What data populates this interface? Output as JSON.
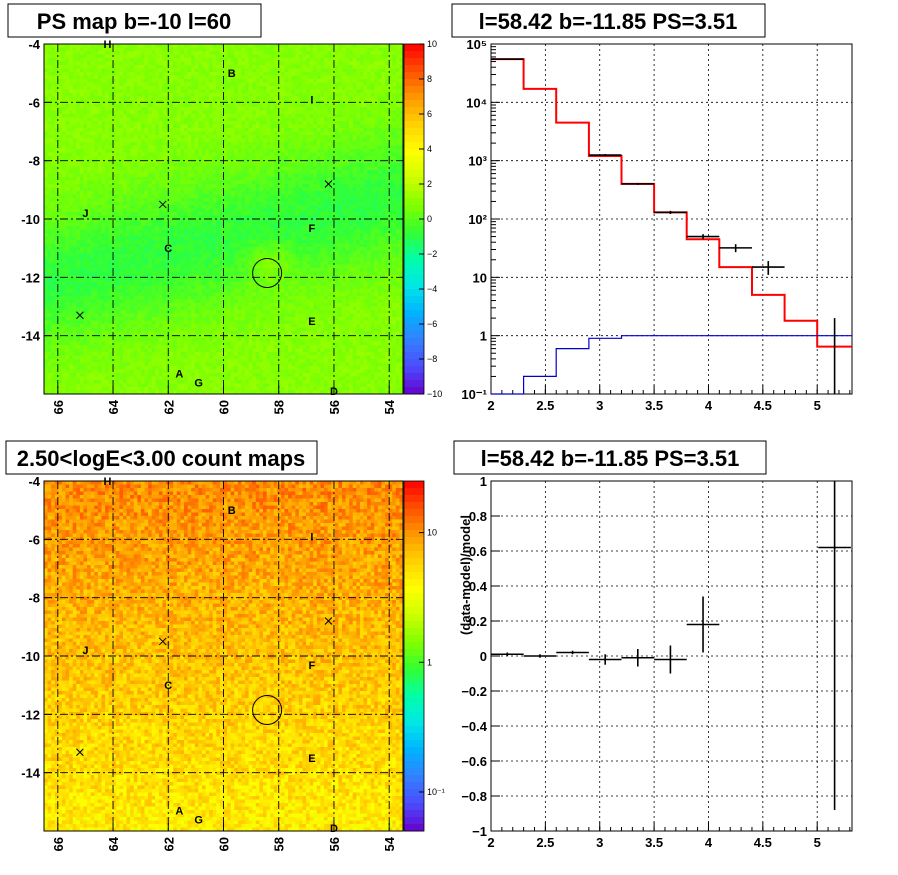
{
  "chart_data": [
    {
      "type": "heatmap",
      "title": "PS map b=-10 l=60",
      "xlim": [
        66.5,
        53.5
      ],
      "ylim": [
        -16,
        -4
      ],
      "x_ticks": [
        "66",
        "64",
        "62",
        "60",
        "58",
        "56",
        "54"
      ],
      "y_ticks": [
        "-4",
        "-6",
        "-8",
        "-10",
        "-12",
        "-14"
      ],
      "colorbar_ticks": [
        "10",
        "8",
        "6",
        "4",
        "2",
        "0",
        "−2",
        "−4",
        "−6",
        "−8",
        "−10"
      ],
      "colorbar_range": [
        -10,
        10
      ],
      "background_level": 0.3,
      "circle": {
        "x": 58.42,
        "y": -11.85
      },
      "crosses": [
        {
          "x": 62.2,
          "y": -9.5
        },
        {
          "x": 65.2,
          "y": -13.3
        },
        {
          "x": 56.2,
          "y": -8.8
        }
      ],
      "sources": [
        {
          "label": "H",
          "x": 64.2,
          "y": -4.0
        },
        {
          "label": "B",
          "x": 59.7,
          "y": -5.0
        },
        {
          "label": "I",
          "x": 56.8,
          "y": -5.9
        },
        {
          "label": "J",
          "x": 65.0,
          "y": -9.8
        },
        {
          "label": "F",
          "x": 56.8,
          "y": -10.3
        },
        {
          "label": "C",
          "x": 62.0,
          "y": -11.0
        },
        {
          "label": "E",
          "x": 56.8,
          "y": -13.5
        },
        {
          "label": "A",
          "x": 61.6,
          "y": -15.3
        },
        {
          "label": "G",
          "x": 60.9,
          "y": -15.6
        },
        {
          "label": "D",
          "x": 56.0,
          "y": -15.9
        }
      ]
    },
    {
      "type": "line",
      "title": "l=58.42 b=-11.85 PS=3.51",
      "xlim": [
        2,
        5.32
      ],
      "ylim": [
        0.1,
        100000
      ],
      "y_scale": "log",
      "x_ticks": [
        "2",
        "2.5",
        "3",
        "3.5",
        "4",
        "4.5",
        "5"
      ],
      "y_ticks": [
        "10⁻¹",
        "1",
        "10",
        "10²",
        "10³",
        "10⁴",
        "10⁵"
      ],
      "series": [
        {
          "color": "#ff0000",
          "style": "step",
          "edges": [
            2.0,
            2.3,
            2.6,
            2.9,
            3.2,
            3.5,
            3.8,
            4.1,
            4.4,
            4.7,
            5.0,
            5.32
          ],
          "values": [
            55000,
            17000,
            4500,
            1200,
            400,
            130,
            45,
            15,
            5,
            1.8,
            0.65
          ]
        },
        {
          "color": "#0000cc",
          "style": "step",
          "edges": [
            2.0,
            2.3,
            2.6,
            2.9,
            3.2,
            3.5,
            3.8,
            4.1,
            4.4,
            4.7,
            5.0,
            5.32
          ],
          "values": [
            0.01,
            0.2,
            0.6,
            0.9,
            1.0,
            1.0,
            1.0,
            1.0,
            1.0,
            1.0,
            1.0
          ]
        },
        {
          "color": "#000000",
          "style": "points",
          "points": [
            {
              "x": 2.15,
              "y": 55000,
              "xerr": 0.15,
              "ylo": 54000,
              "yhi": 56000
            },
            {
              "x": 3.05,
              "y": 1250,
              "xerr": 0.15,
              "ylo": 1200,
              "yhi": 1300
            },
            {
              "x": 3.35,
              "y": 400,
              "xerr": 0.15,
              "ylo": 385,
              "yhi": 415
            },
            {
              "x": 3.65,
              "y": 130,
              "xerr": 0.15,
              "ylo": 122,
              "yhi": 138
            },
            {
              "x": 3.95,
              "y": 50,
              "xerr": 0.15,
              "ylo": 45,
              "yhi": 55
            },
            {
              "x": 4.25,
              "y": 32,
              "xerr": 0.15,
              "ylo": 27,
              "yhi": 37
            },
            {
              "x": 4.55,
              "y": 15,
              "xerr": 0.15,
              "ylo": 11,
              "yhi": 19
            },
            {
              "x": 5.16,
              "y": 0.1,
              "xerr": 0.0,
              "ylo": 0.1,
              "yhi": 2
            }
          ]
        }
      ]
    },
    {
      "type": "heatmap",
      "title": "2.50<logE<3.00 count maps",
      "xlim": [
        66.5,
        53.5
      ],
      "ylim": [
        -16,
        -4
      ],
      "x_ticks": [
        "66",
        "64",
        "62",
        "60",
        "58",
        "56",
        "54"
      ],
      "y_ticks": [
        "-4",
        "-6",
        "-8",
        "-10",
        "-12",
        "-14"
      ],
      "colorbar_scale": "log",
      "colorbar_range": [
        0.05,
        25
      ],
      "colorbar_ticks": [
        "10",
        "1",
        "10⁻¹"
      ],
      "colorbar_tick_values": [
        10,
        1,
        0.1
      ],
      "circle": {
        "x": 58.42,
        "y": -11.85
      },
      "crosses": [
        {
          "x": 62.2,
          "y": -9.5
        },
        {
          "x": 65.2,
          "y": -13.3
        },
        {
          "x": 56.2,
          "y": -8.8
        }
      ],
      "sources": [
        {
          "label": "H",
          "x": 64.2,
          "y": -4.0
        },
        {
          "label": "B",
          "x": 59.7,
          "y": -5.0
        },
        {
          "label": "I",
          "x": 56.8,
          "y": -5.9
        },
        {
          "label": "J",
          "x": 65.0,
          "y": -9.8
        },
        {
          "label": "F",
          "x": 56.8,
          "y": -10.3
        },
        {
          "label": "C",
          "x": 62.0,
          "y": -11.0
        },
        {
          "label": "E",
          "x": 56.8,
          "y": -13.5
        },
        {
          "label": "A",
          "x": 61.6,
          "y": -15.3
        },
        {
          "label": "G",
          "x": 60.9,
          "y": -15.6
        },
        {
          "label": "D",
          "x": 56.0,
          "y": -15.9
        }
      ]
    },
    {
      "type": "scatter",
      "title": "l=58.42 b=-11.85 PS=3.51",
      "ylabel": "(data-model)/model",
      "xlim": [
        2,
        5.32
      ],
      "ylim": [
        -1,
        1
      ],
      "x_ticks": [
        "2",
        "2.5",
        "3",
        "3.5",
        "4",
        "4.5",
        "5"
      ],
      "y_ticks": [
        "1",
        "0.8",
        "0.6",
        "0.4",
        "0.2",
        "0",
        "−0.2",
        "−0.4",
        "−0.6",
        "−0.8",
        "−1"
      ],
      "points": [
        {
          "x": 2.15,
          "y": 0.01,
          "xerr": 0.15,
          "yerr": 0.01
        },
        {
          "x": 2.45,
          "y": 0.0,
          "xerr": 0.15,
          "yerr": 0.01
        },
        {
          "x": 2.75,
          "y": 0.02,
          "xerr": 0.15,
          "yerr": 0.01
        },
        {
          "x": 3.05,
          "y": -0.02,
          "xerr": 0.15,
          "yerr": 0.03
        },
        {
          "x": 3.35,
          "y": -0.01,
          "xerr": 0.15,
          "yerr": 0.05
        },
        {
          "x": 3.65,
          "y": -0.02,
          "xerr": 0.15,
          "yerr": 0.08
        },
        {
          "x": 3.95,
          "y": 0.18,
          "xerr": 0.15,
          "yerr": 0.16
        },
        {
          "x": 5.16,
          "y": 0.62,
          "xerr": 0.15,
          "yerr": 1.5
        }
      ]
    }
  ]
}
